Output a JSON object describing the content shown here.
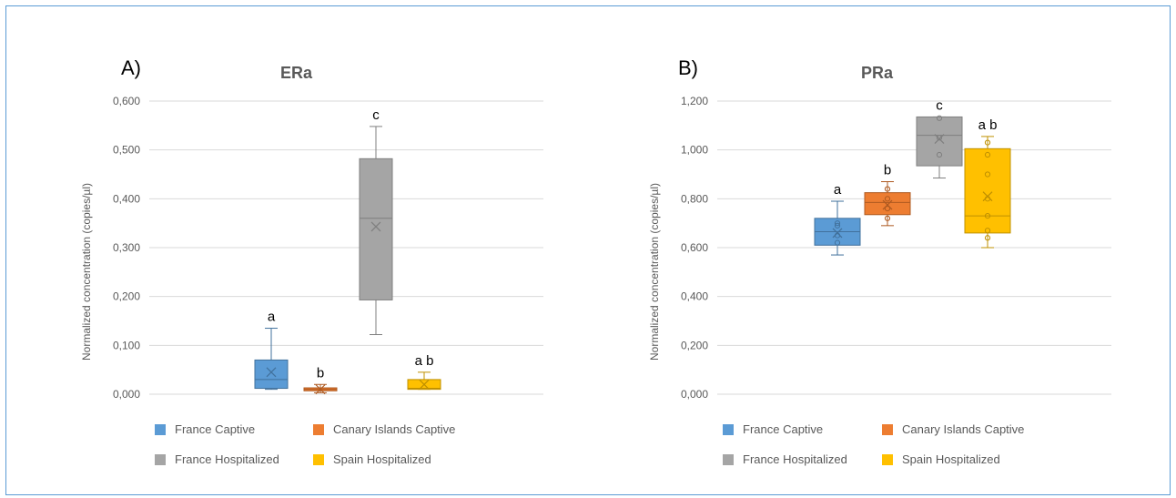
{
  "chart_data": [
    {
      "type": "box",
      "panel": "A)",
      "title": "ERa",
      "ylabel": "Normalized concentration (copies/µl)",
      "ylim": [
        0,
        0.6
      ],
      "yticks": [
        "0,000",
        "0,100",
        "0,200",
        "0,300",
        "0,400",
        "0,500",
        "0,600"
      ],
      "grid": true,
      "legend_position": "bottom",
      "series": [
        {
          "name": "France Captive",
          "color": "#5b9bd5",
          "stroke": "#41719c",
          "min": 0.01,
          "q1": 0.012,
          "median": 0.03,
          "q3": 0.07,
          "max": 0.135,
          "mean": 0.045,
          "letter": "a"
        },
        {
          "name": "Canary Islands Captive",
          "color": "#ed7d31",
          "stroke": "#ae5a21",
          "min": 0.003,
          "q1": 0.007,
          "median": 0.01,
          "q3": 0.013,
          "max": 0.02,
          "mean": 0.01,
          "letter": "b"
        },
        {
          "name": "France Hospitalized",
          "color": "#a5a5a5",
          "stroke": "#7f7f7f",
          "min": 0.122,
          "q1": 0.193,
          "median": 0.36,
          "q3": 0.482,
          "max": 0.548,
          "mean": 0.343,
          "letter": "c"
        },
        {
          "name": "Spain Hospitalized",
          "color": "#ffc000",
          "stroke": "#bf9000",
          "min": 0.01,
          "q1": 0.01,
          "median": 0.012,
          "q3": 0.03,
          "max": 0.045,
          "mean": 0.02,
          "letter": "a b"
        }
      ]
    },
    {
      "type": "box",
      "panel": "B)",
      "title": "PRa",
      "ylabel": "Normalized concentration (copies/µl)",
      "ylim": [
        0,
        1.2
      ],
      "yticks": [
        "0,000",
        "0,200",
        "0,400",
        "0,600",
        "0,800",
        "1,000",
        "1,200"
      ],
      "grid": true,
      "legend_position": "bottom",
      "series": [
        {
          "name": "France Captive",
          "color": "#5b9bd5",
          "stroke": "#41719c",
          "min": 0.57,
          "q1": 0.61,
          "median": 0.665,
          "q3": 0.72,
          "max": 0.79,
          "mean": 0.66,
          "letter": "a",
          "points": [
            0.62,
            0.65,
            0.69,
            0.7
          ]
        },
        {
          "name": "Canary Islands Captive",
          "color": "#ed7d31",
          "stroke": "#ae5a21",
          "min": 0.69,
          "q1": 0.735,
          "median": 0.785,
          "q3": 0.825,
          "max": 0.87,
          "mean": 0.775,
          "letter": "b",
          "points": [
            0.72,
            0.76,
            0.8,
            0.84
          ]
        },
        {
          "name": "France Hospitalized",
          "color": "#a5a5a5",
          "stroke": "#7f7f7f",
          "min": 0.885,
          "q1": 0.935,
          "median": 1.06,
          "q3": 1.135,
          "max": 1.135,
          "mean": 1.045,
          "letter": "c",
          "points": [
            0.98,
            1.05,
            1.13
          ]
        },
        {
          "name": "Spain Hospitalized",
          "color": "#ffc000",
          "stroke": "#bf9000",
          "min": 0.6,
          "q1": 0.66,
          "median": 0.73,
          "q3": 1.005,
          "max": 1.055,
          "mean": 0.81,
          "letter": "a b",
          "points": [
            0.64,
            0.67,
            0.73,
            0.8,
            0.9,
            0.98,
            1.03
          ]
        }
      ]
    }
  ]
}
